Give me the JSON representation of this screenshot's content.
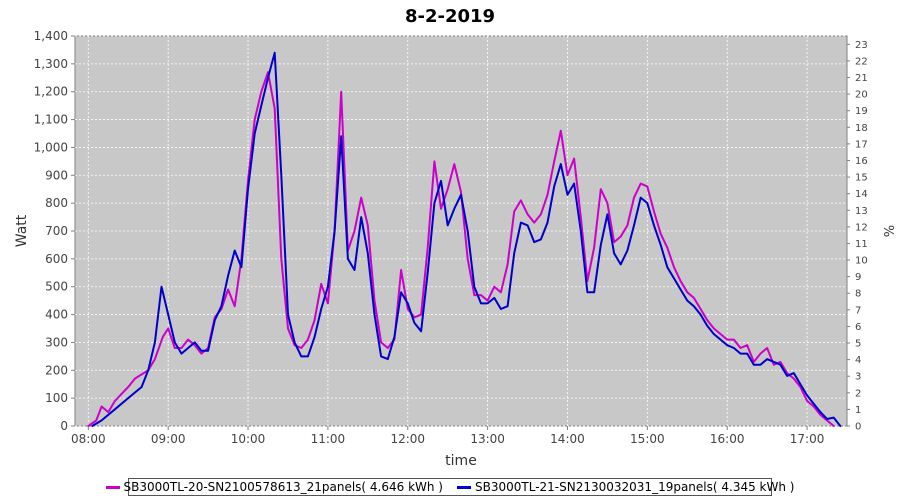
{
  "chart_data": {
    "type": "line",
    "title": "8-2-2019",
    "xlabel": "time",
    "ylabel": "Watt",
    "y2label": "%",
    "xlim": [
      "07:50",
      "17:30"
    ],
    "ylim": [
      0,
      1400
    ],
    "y2lim": [
      0,
      23.5
    ],
    "x_ticks": [
      "08:00",
      "09:00",
      "10:00",
      "11:00",
      "12:00",
      "13:00",
      "14:00",
      "15:00",
      "16:00",
      "17:00"
    ],
    "y_ticks": [
      "0",
      "100",
      "200",
      "300",
      "400",
      "500",
      "600",
      "700",
      "800",
      "900",
      "1,000",
      "1,100",
      "1,200",
      "1,300",
      "1,400"
    ],
    "y2_ticks": [
      "0",
      "1",
      "2",
      "3",
      "4",
      "5",
      "6",
      "7",
      "8",
      "9",
      "10",
      "11",
      "12",
      "13",
      "14",
      "15",
      "16",
      "17",
      "18",
      "19",
      "20",
      "21",
      "22",
      "23"
    ],
    "grid": true,
    "legend_position": "bottom",
    "series": [
      {
        "name": "SB3000TL-20-SN2100578613_21panels( 4.646 kWh )",
        "color": "#cc00cc",
        "points": [
          [
            "08:00",
            0
          ],
          [
            "08:06",
            20
          ],
          [
            "08:10",
            70
          ],
          [
            "08:15",
            50
          ],
          [
            "08:20",
            90
          ],
          [
            "08:30",
            140
          ],
          [
            "08:35",
            170
          ],
          [
            "08:45",
            200
          ],
          [
            "08:50",
            240
          ],
          [
            "08:56",
            320
          ],
          [
            "09:00",
            350
          ],
          [
            "09:05",
            280
          ],
          [
            "09:10",
            280
          ],
          [
            "09:15",
            310
          ],
          [
            "09:20",
            290
          ],
          [
            "09:25",
            260
          ],
          [
            "09:30",
            280
          ],
          [
            "09:35",
            390
          ],
          [
            "09:40",
            420
          ],
          [
            "09:45",
            490
          ],
          [
            "09:50",
            430
          ],
          [
            "09:55",
            600
          ],
          [
            "10:00",
            880
          ],
          [
            "10:05",
            1100
          ],
          [
            "10:10",
            1200
          ],
          [
            "10:15",
            1270
          ],
          [
            "10:20",
            1140
          ],
          [
            "10:25",
            600
          ],
          [
            "10:30",
            350
          ],
          [
            "10:35",
            290
          ],
          [
            "10:40",
            280
          ],
          [
            "10:45",
            310
          ],
          [
            "10:50",
            380
          ],
          [
            "10:55",
            510
          ],
          [
            "11:00",
            440
          ],
          [
            "11:05",
            700
          ],
          [
            "11:10",
            1200
          ],
          [
            "11:15",
            630
          ],
          [
            "11:20",
            700
          ],
          [
            "11:25",
            820
          ],
          [
            "11:30",
            720
          ],
          [
            "11:35",
            450
          ],
          [
            "11:40",
            300
          ],
          [
            "11:45",
            280
          ],
          [
            "11:50",
            310
          ],
          [
            "11:55",
            560
          ],
          [
            "12:00",
            420
          ],
          [
            "12:05",
            390
          ],
          [
            "12:10",
            400
          ],
          [
            "12:15",
            640
          ],
          [
            "12:20",
            950
          ],
          [
            "12:25",
            780
          ],
          [
            "12:30",
            850
          ],
          [
            "12:35",
            940
          ],
          [
            "12:40",
            840
          ],
          [
            "12:45",
            600
          ],
          [
            "12:50",
            470
          ],
          [
            "12:55",
            470
          ],
          [
            "13:00",
            450
          ],
          [
            "13:05",
            500
          ],
          [
            "13:10",
            480
          ],
          [
            "13:15",
            580
          ],
          [
            "13:20",
            770
          ],
          [
            "13:25",
            810
          ],
          [
            "13:30",
            760
          ],
          [
            "13:35",
            730
          ],
          [
            "13:40",
            760
          ],
          [
            "13:45",
            830
          ],
          [
            "13:50",
            950
          ],
          [
            "13:55",
            1060
          ],
          [
            "14:00",
            900
          ],
          [
            "14:05",
            960
          ],
          [
            "14:10",
            750
          ],
          [
            "14:15",
            520
          ],
          [
            "14:20",
            640
          ],
          [
            "14:25",
            850
          ],
          [
            "14:30",
            800
          ],
          [
            "14:35",
            660
          ],
          [
            "14:40",
            680
          ],
          [
            "14:45",
            720
          ],
          [
            "14:50",
            820
          ],
          [
            "14:55",
            870
          ],
          [
            "15:00",
            860
          ],
          [
            "15:05",
            770
          ],
          [
            "15:10",
            690
          ],
          [
            "15:15",
            640
          ],
          [
            "15:20",
            570
          ],
          [
            "15:25",
            520
          ],
          [
            "15:30",
            480
          ],
          [
            "15:35",
            460
          ],
          [
            "15:40",
            420
          ],
          [
            "15:45",
            380
          ],
          [
            "15:50",
            350
          ],
          [
            "15:55",
            330
          ],
          [
            "16:00",
            310
          ],
          [
            "16:05",
            310
          ],
          [
            "16:10",
            280
          ],
          [
            "16:15",
            290
          ],
          [
            "16:20",
            230
          ],
          [
            "16:25",
            260
          ],
          [
            "16:30",
            280
          ],
          [
            "16:35",
            220
          ],
          [
            "16:40",
            230
          ],
          [
            "16:45",
            190
          ],
          [
            "16:50",
            170
          ],
          [
            "16:55",
            140
          ],
          [
            "17:00",
            90
          ],
          [
            "17:05",
            70
          ],
          [
            "17:10",
            40
          ],
          [
            "17:15",
            20
          ],
          [
            "17:20",
            0
          ]
        ]
      },
      {
        "name": "SB3000TL-21-SN2130032031_19panels( 4.345 kWh )",
        "color": "#0000cc",
        "points": [
          [
            "08:03",
            0
          ],
          [
            "08:10",
            20
          ],
          [
            "08:20",
            60
          ],
          [
            "08:30",
            100
          ],
          [
            "08:40",
            140
          ],
          [
            "08:45",
            200
          ],
          [
            "08:50",
            300
          ],
          [
            "08:55",
            500
          ],
          [
            "09:00",
            400
          ],
          [
            "09:05",
            300
          ],
          [
            "09:10",
            260
          ],
          [
            "09:15",
            280
          ],
          [
            "09:20",
            300
          ],
          [
            "09:25",
            270
          ],
          [
            "09:30",
            270
          ],
          [
            "09:35",
            380
          ],
          [
            "09:40",
            430
          ],
          [
            "09:45",
            540
          ],
          [
            "09:50",
            630
          ],
          [
            "09:55",
            570
          ],
          [
            "10:00",
            850
          ],
          [
            "10:05",
            1050
          ],
          [
            "10:10",
            1150
          ],
          [
            "10:15",
            1250
          ],
          [
            "10:20",
            1340
          ],
          [
            "10:25",
            900
          ],
          [
            "10:30",
            400
          ],
          [
            "10:35",
            300
          ],
          [
            "10:40",
            250
          ],
          [
            "10:45",
            250
          ],
          [
            "10:50",
            320
          ],
          [
            "10:55",
            420
          ],
          [
            "11:00",
            500
          ],
          [
            "11:05",
            700
          ],
          [
            "11:10",
            1040
          ],
          [
            "11:15",
            600
          ],
          [
            "11:20",
            560
          ],
          [
            "11:25",
            750
          ],
          [
            "11:30",
            620
          ],
          [
            "11:35",
            400
          ],
          [
            "11:40",
            250
          ],
          [
            "11:45",
            240
          ],
          [
            "11:50",
            320
          ],
          [
            "11:55",
            480
          ],
          [
            "12:00",
            440
          ],
          [
            "12:05",
            370
          ],
          [
            "12:10",
            340
          ],
          [
            "12:15",
            550
          ],
          [
            "12:20",
            800
          ],
          [
            "12:25",
            880
          ],
          [
            "12:30",
            720
          ],
          [
            "12:35",
            780
          ],
          [
            "12:40",
            830
          ],
          [
            "12:45",
            700
          ],
          [
            "12:50",
            500
          ],
          [
            "12:55",
            440
          ],
          [
            "13:00",
            440
          ],
          [
            "13:05",
            460
          ],
          [
            "13:10",
            420
          ],
          [
            "13:15",
            430
          ],
          [
            "13:20",
            620
          ],
          [
            "13:25",
            730
          ],
          [
            "13:30",
            720
          ],
          [
            "13:35",
            660
          ],
          [
            "13:40",
            670
          ],
          [
            "13:45",
            730
          ],
          [
            "13:50",
            860
          ],
          [
            "13:55",
            940
          ],
          [
            "14:00",
            830
          ],
          [
            "14:05",
            870
          ],
          [
            "14:10",
            700
          ],
          [
            "14:15",
            480
          ],
          [
            "14:20",
            480
          ],
          [
            "14:25",
            650
          ],
          [
            "14:30",
            760
          ],
          [
            "14:35",
            620
          ],
          [
            "14:40",
            580
          ],
          [
            "14:45",
            630
          ],
          [
            "14:50",
            720
          ],
          [
            "14:55",
            820
          ],
          [
            "15:00",
            800
          ],
          [
            "15:05",
            720
          ],
          [
            "15:10",
            650
          ],
          [
            "15:15",
            570
          ],
          [
            "15:20",
            530
          ],
          [
            "15:25",
            490
          ],
          [
            "15:30",
            450
          ],
          [
            "15:35",
            430
          ],
          [
            "15:40",
            400
          ],
          [
            "15:45",
            360
          ],
          [
            "15:50",
            330
          ],
          [
            "15:55",
            310
          ],
          [
            "16:00",
            290
          ],
          [
            "16:05",
            280
          ],
          [
            "16:10",
            260
          ],
          [
            "16:15",
            260
          ],
          [
            "16:20",
            220
          ],
          [
            "16:25",
            220
          ],
          [
            "16:30",
            240
          ],
          [
            "16:35",
            230
          ],
          [
            "16:40",
            220
          ],
          [
            "16:45",
            180
          ],
          [
            "16:50",
            190
          ],
          [
            "16:55",
            150
          ],
          [
            "17:00",
            110
          ],
          [
            "17:05",
            80
          ],
          [
            "17:10",
            50
          ],
          [
            "17:15",
            25
          ],
          [
            "17:20",
            30
          ],
          [
            "17:25",
            0
          ]
        ]
      }
    ]
  }
}
